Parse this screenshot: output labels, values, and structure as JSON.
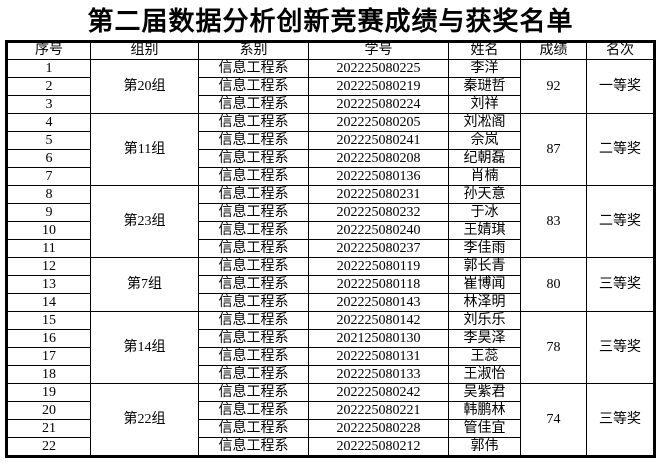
{
  "title": "第二届数据分析创新竞赛成绩与获奖名单",
  "colors": {
    "border": "#000000",
    "text": "#000000",
    "background": "#ffffff"
  },
  "table": {
    "headers": [
      "序号",
      "组别",
      "系别",
      "学号",
      "姓名",
      "成绩",
      "名次"
    ],
    "groups": [
      {
        "name": "第20组",
        "score": "92",
        "award": "一等奖",
        "members": [
          {
            "no": "1",
            "dept": "信息工程系",
            "student_id": "202225080225",
            "student_name": "李洋"
          },
          {
            "no": "2",
            "dept": "信息工程系",
            "student_id": "202225080219",
            "student_name": "秦琎哲"
          },
          {
            "no": "3",
            "dept": "信息工程系",
            "student_id": "202225080224",
            "student_name": "刘祥"
          }
        ]
      },
      {
        "name": "第11组",
        "score": "87",
        "award": "二等奖",
        "members": [
          {
            "no": "4",
            "dept": "信息工程系",
            "student_id": "202225080205",
            "student_name": "刘凇阁"
          },
          {
            "no": "5",
            "dept": "信息工程系",
            "student_id": "202225080241",
            "student_name": "佘岚"
          },
          {
            "no": "6",
            "dept": "信息工程系",
            "student_id": "202225080208",
            "student_name": "纪朝磊"
          },
          {
            "no": "7",
            "dept": "信息工程系",
            "student_id": "202225080136",
            "student_name": "肖楠"
          }
        ]
      },
      {
        "name": "第23组",
        "score": "83",
        "award": "二等奖",
        "members": [
          {
            "no": "8",
            "dept": "信息工程系",
            "student_id": "202225080231",
            "student_name": "孙天意"
          },
          {
            "no": "9",
            "dept": "信息工程系",
            "student_id": "202225080232",
            "student_name": "于冰"
          },
          {
            "no": "10",
            "dept": "信息工程系",
            "student_id": "202225080240",
            "student_name": "王婧琪"
          },
          {
            "no": "11",
            "dept": "信息工程系",
            "student_id": "202225080237",
            "student_name": "李佳雨"
          }
        ]
      },
      {
        "name": "第7组",
        "score": "80",
        "award": "三等奖",
        "members": [
          {
            "no": "12",
            "dept": "信息工程系",
            "student_id": "202225080119",
            "student_name": "郭长青"
          },
          {
            "no": "13",
            "dept": "信息工程系",
            "student_id": "202225080118",
            "student_name": "崔博闻"
          },
          {
            "no": "14",
            "dept": "信息工程系",
            "student_id": "202225080143",
            "student_name": "林泽明"
          }
        ]
      },
      {
        "name": "第14组",
        "score": "78",
        "award": "三等奖",
        "members": [
          {
            "no": "15",
            "dept": "信息工程系",
            "student_id": "202225080142",
            "student_name": "刘乐乐"
          },
          {
            "no": "16",
            "dept": "信息工程系",
            "student_id": "202125080130",
            "student_name": "李昊泽"
          },
          {
            "no": "17",
            "dept": "信息工程系",
            "student_id": "202225080131",
            "student_name": "王蕊"
          },
          {
            "no": "18",
            "dept": "信息工程系",
            "student_id": "202225080133",
            "student_name": "王淑怡"
          }
        ]
      },
      {
        "name": "第22组",
        "score": "74",
        "award": "三等奖",
        "members": [
          {
            "no": "19",
            "dept": "信息工程系",
            "student_id": "202225080242",
            "student_name": "吴紫君"
          },
          {
            "no": "20",
            "dept": "信息工程系",
            "student_id": "202225080221",
            "student_name": "韩鹏林"
          },
          {
            "no": "21",
            "dept": "信息工程系",
            "student_id": "202225080228",
            "student_name": "管佳宜"
          },
          {
            "no": "22",
            "dept": "信息工程系",
            "student_id": "202225080212",
            "student_name": "郭伟"
          }
        ]
      }
    ]
  }
}
